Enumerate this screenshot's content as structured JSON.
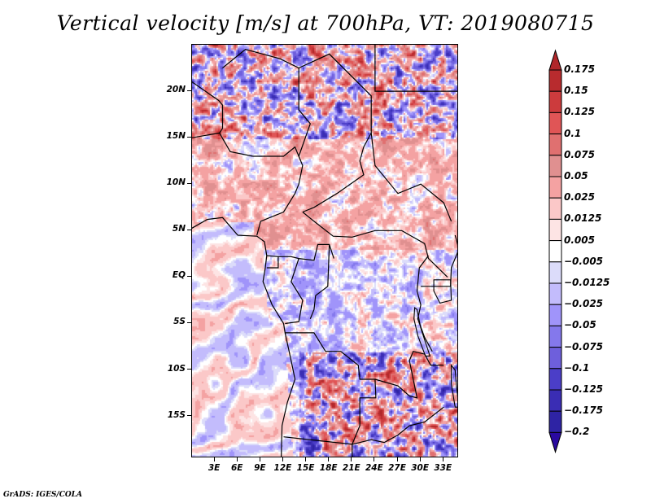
{
  "chart_data": {
    "type": "heatmap",
    "title": "Vertical velocity [m/s] at 700hPa, VT: 2019080715",
    "variable": "Vertical velocity",
    "units": "m/s",
    "level": "700hPa",
    "valid_time": "2019080715",
    "xlabel": "",
    "ylabel": "",
    "x_range_deg_lon": [
      0,
      35
    ],
    "y_range_deg_lat": [
      -19.5,
      25
    ],
    "x_ticks": [
      3,
      6,
      9,
      12,
      15,
      18,
      21,
      24,
      27,
      30,
      33
    ],
    "x_tick_labels": [
      "3E",
      "6E",
      "9E",
      "12E",
      "15E",
      "18E",
      "21E",
      "24E",
      "27E",
      "30E",
      "33E"
    ],
    "y_ticks": [
      20,
      15,
      10,
      5,
      0,
      -5,
      -10,
      -15
    ],
    "y_tick_labels": [
      "20N",
      "15N",
      "10N",
      "5N",
      "EQ",
      "5S",
      "10S",
      "15S"
    ],
    "grid": false,
    "map_overlay": "country borders and coastlines (Central Africa)",
    "colorbar": {
      "placement": "right",
      "orientation": "vertical",
      "extend": "both",
      "levels": [
        0.175,
        0.15,
        0.125,
        0.1,
        0.075,
        0.05,
        0.025,
        0.0125,
        0.005,
        -0.005,
        -0.0125,
        -0.025,
        -0.05,
        -0.075,
        -0.1,
        -0.125,
        -0.175,
        -0.2
      ],
      "labels": [
        "0.175",
        "0.15",
        "0.125",
        "0.1",
        "0.075",
        "0.05",
        "0.025",
        "0.0125",
        "0.005",
        "−0.005",
        "−0.0125",
        "−0.025",
        "−0.05",
        "−0.075",
        "−0.1",
        "−0.125",
        "−0.175",
        "−0.2"
      ],
      "colors_top_to_bottom": [
        "#b0272a",
        "#b82b2e",
        "#cc3b3d",
        "#e05556",
        "#e07070",
        "#e09090",
        "#f4a2a2",
        "#fbc8c8",
        "#fde4e4",
        "#ffffff",
        "#dcdcfa",
        "#c3bcfc",
        "#a094fa",
        "#8478ec",
        "#6e5fdc",
        "#4b3ec8",
        "#3a2db4",
        "#2e23a4",
        "#2a1d9a"
      ],
      "over_color": "#b0272a",
      "under_color": "#2a0aa0"
    }
  },
  "footer": {
    "credit": "GrADS: IGES/COLA"
  }
}
